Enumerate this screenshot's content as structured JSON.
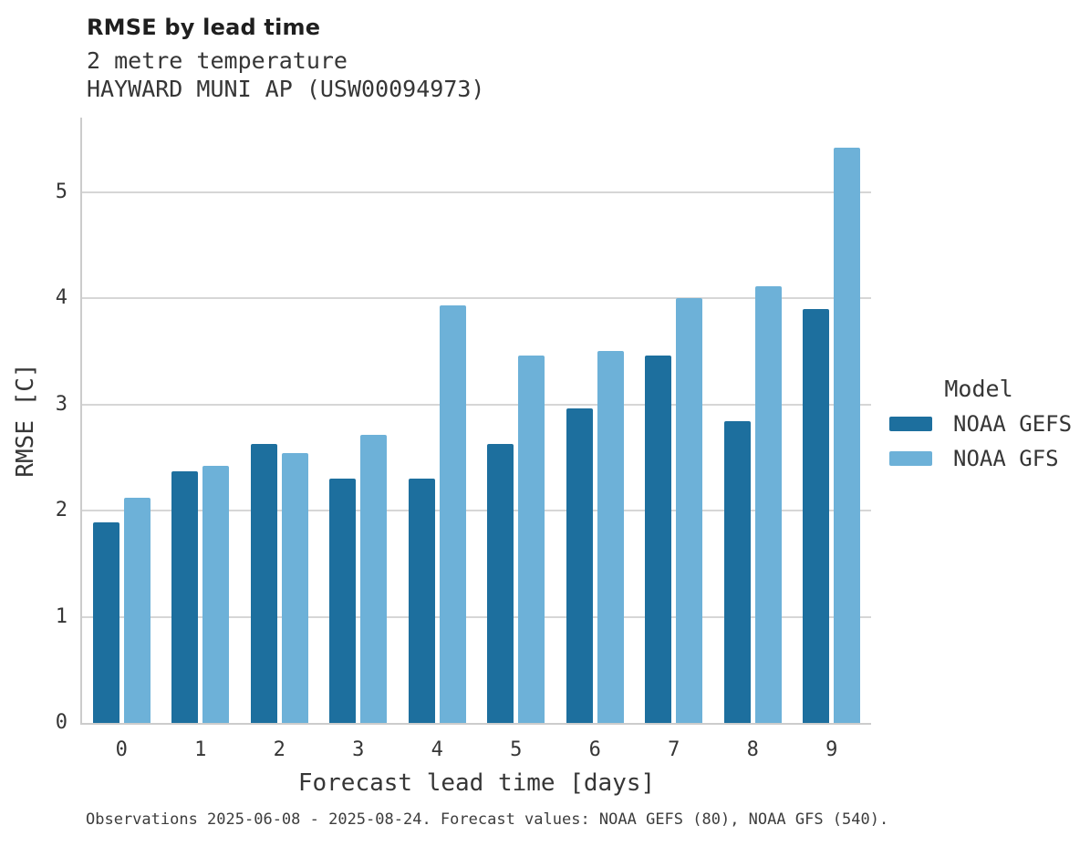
{
  "title": "RMSE by lead time",
  "subtitle_line1": "2 metre temperature",
  "subtitle_line2": "HAYWARD MUNI AP (USW00094973)",
  "footnote": "Observations 2025-06-08 - 2025-08-24. Forecast values: NOAA GEFS (80), NOAA GFS (540).",
  "legend": {
    "title": "Model",
    "items": [
      {
        "label": "NOAA GEFS",
        "color": "#1d6f9e"
      },
      {
        "label": "NOAA GFS",
        "color": "#6db1d8"
      }
    ]
  },
  "colors": {
    "grid": "#d6d6d6",
    "spine": "#cccccc",
    "text": "#363636"
  },
  "chart_data": {
    "type": "bar",
    "title": "RMSE by lead time",
    "subtitle": [
      "2 metre temperature",
      "HAYWARD MUNI AP (USW00094973)"
    ],
    "xlabel": "Forecast lead time [days]",
    "ylabel": "RMSE [C]",
    "categories": [
      "0",
      "1",
      "2",
      "3",
      "4",
      "5",
      "6",
      "7",
      "8",
      "9"
    ],
    "series": [
      {
        "name": "NOAA GEFS",
        "color": "#1d6f9e",
        "values": [
          1.89,
          2.37,
          2.63,
          2.3,
          2.3,
          2.63,
          2.96,
          3.46,
          2.84,
          3.9
        ]
      },
      {
        "name": "NOAA GFS",
        "color": "#6db1d8",
        "values": [
          2.12,
          2.42,
          2.54,
          2.71,
          3.93,
          3.46,
          3.5,
          4.0,
          4.11,
          5.42
        ]
      }
    ],
    "ylim": [
      0,
      5.7
    ],
    "yticks": [
      0,
      1,
      2,
      3,
      4,
      5
    ],
    "grid": "horizontal",
    "legend_position": "right",
    "footnote": "Observations 2025-06-08 - 2025-08-24. Forecast values: NOAA GEFS (80), NOAA GFS (540)."
  }
}
